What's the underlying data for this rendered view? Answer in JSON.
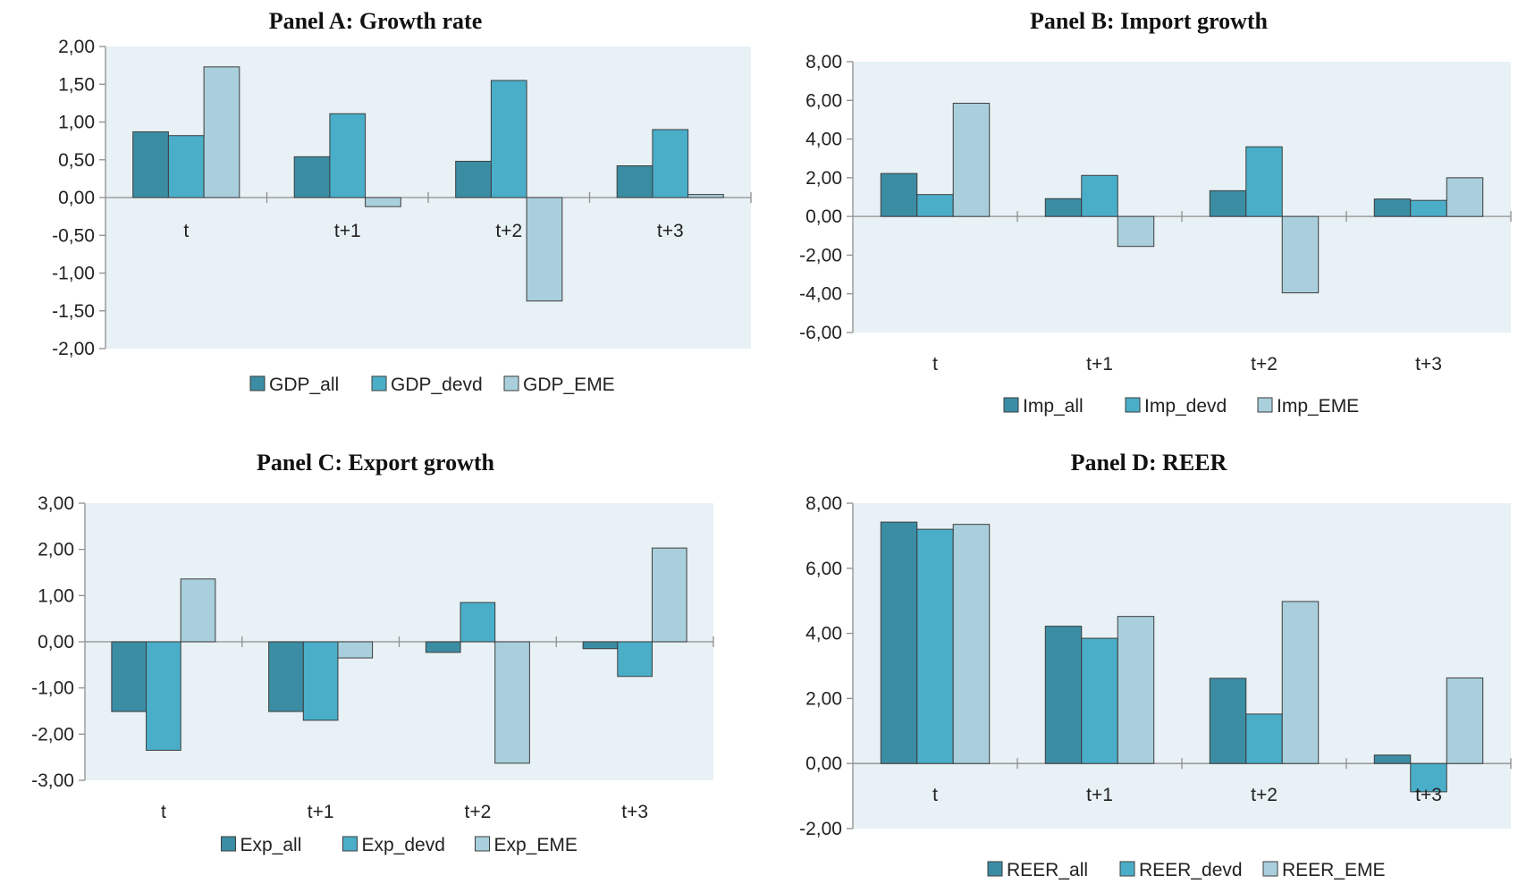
{
  "chart_data": [
    {
      "type": "bar",
      "title": "Panel A: Growth rate",
      "categories": [
        "t",
        "t+1",
        "t+2",
        "t+3"
      ],
      "ylim": [
        -2,
        2
      ],
      "yticks": [
        "2,00",
        "1,50",
        "1,00",
        "0,50",
        "0,00",
        "-0,50",
        "-1,00",
        "-1,50",
        "-2,00"
      ],
      "series": [
        {
          "name": "GDP_all",
          "values": [
            0.87,
            0.54,
            0.48,
            0.42
          ]
        },
        {
          "name": "GDP_devd",
          "values": [
            0.82,
            1.11,
            1.55,
            0.9
          ]
        },
        {
          "name": "GDP_EME",
          "values": [
            1.73,
            -0.12,
            -1.37,
            0.04
          ]
        }
      ],
      "legend": "bottom"
    },
    {
      "type": "bar",
      "title": "Panel B: Import growth",
      "categories": [
        "t",
        "t+1",
        "t+2",
        "t+3"
      ],
      "ylim": [
        -6,
        8
      ],
      "yticks": [
        "8,00",
        "6,00",
        "4,00",
        "2,00",
        "0,00",
        "-2,00",
        "-4,00",
        "-6,00"
      ],
      "series": [
        {
          "name": "Imp_all",
          "values": [
            2.22,
            0.92,
            1.33,
            0.9
          ]
        },
        {
          "name": "Imp_devd",
          "values": [
            1.13,
            2.12,
            3.6,
            0.83
          ]
        },
        {
          "name": "Imp_EME",
          "values": [
            5.85,
            -1.55,
            -3.95,
            2.0
          ]
        }
      ],
      "legend": "bottom"
    },
    {
      "type": "bar",
      "title": "Panel C: Export growth",
      "categories": [
        "t",
        "t+1",
        "t+2",
        "t+3"
      ],
      "ylim": [
        -3,
        3
      ],
      "yticks": [
        "3,00",
        "2,00",
        "1,00",
        "0,00",
        "-1,00",
        "-2,00",
        "-3,00"
      ],
      "series": [
        {
          "name": "Exp_all",
          "values": [
            -1.51,
            -1.51,
            -0.23,
            -0.15
          ]
        },
        {
          "name": "Exp_devd",
          "values": [
            -2.35,
            -1.7,
            0.85,
            -0.75
          ]
        },
        {
          "name": "Exp_EME",
          "values": [
            1.36,
            -0.35,
            -2.63,
            2.03
          ]
        }
      ],
      "legend": "bottom"
    },
    {
      "type": "bar",
      "title": "Panel D: REER",
      "categories": [
        "t",
        "t+1",
        "t+2",
        "t+3"
      ],
      "ylim": [
        -2,
        8
      ],
      "yticks": [
        "8,00",
        "6,00",
        "4,00",
        "2,00",
        "0,00",
        "-2,00"
      ],
      "series": [
        {
          "name": "REER_all",
          "values": [
            7.42,
            4.22,
            2.62,
            0.26
          ]
        },
        {
          "name": "REER_devd",
          "values": [
            7.2,
            3.85,
            1.52,
            -0.87
          ]
        },
        {
          "name": "REER_EME",
          "values": [
            7.35,
            4.52,
            4.98,
            2.63
          ]
        }
      ],
      "legend": "bottom"
    }
  ],
  "colors": {
    "series": [
      "#3b8da4",
      "#4aaec9",
      "#a9cfdd"
    ],
    "plot_bg": "#e8f1f5",
    "axis": "#8f8f8f",
    "edge": "#3d3d3d"
  }
}
